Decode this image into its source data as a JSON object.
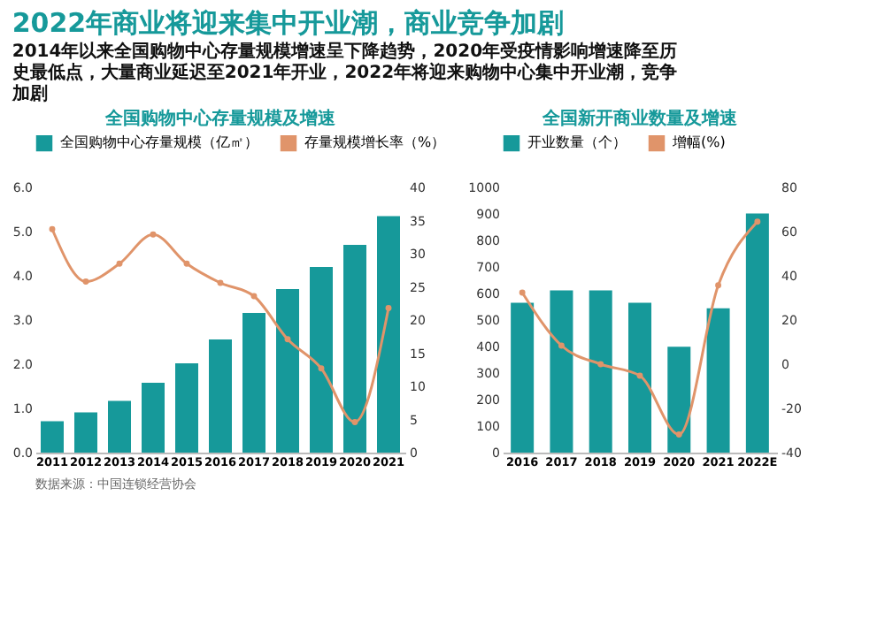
{
  "chart_data": [
    {
      "type": "bar",
      "title": "全国购物中心存量规模及增速",
      "categories": [
        "2011",
        "2012",
        "2013",
        "2014",
        "2015",
        "2016",
        "2017",
        "2018",
        "2019",
        "2020",
        "2021"
      ],
      "series": [
        {
          "name": "全国购物中心存量规模（亿㎡）",
          "color": "#16999a",
          "values": [
            0.71,
            0.91,
            1.17,
            1.58,
            2.02,
            2.56,
            3.16,
            3.7,
            4.2,
            4.7,
            5.35
          ]
        },
        {
          "name": "存量规模增长率（%）",
          "type": "line",
          "axis": "y2",
          "color": "#e0946a",
          "values": [
            33.7,
            25.8,
            28.5,
            32.9,
            28.5,
            25.6,
            23.6,
            17.1,
            12.7,
            4.6,
            21.8
          ]
        }
      ],
      "ylim": [
        0,
        6
      ],
      "yticks": [
        {
          "value": 0,
          "label": "0.0"
        },
        {
          "value": 1,
          "label": "1.0"
        },
        {
          "value": 2,
          "label": "2.0"
        },
        {
          "value": 3,
          "label": "3.0"
        },
        {
          "value": 4,
          "label": "4.0"
        },
        {
          "value": 5,
          "label": "5.0"
        },
        {
          "value": 6,
          "label": "6.0"
        }
      ],
      "y2lim": [
        0,
        40
      ],
      "y2ticks": [
        0,
        5,
        10,
        15,
        20,
        25,
        30,
        35,
        40
      ],
      "legend": "top",
      "marker": "circle",
      "line_style": "solid",
      "grid": false,
      "annotations": [
        "2022年商业将迎来集中开业潮，商业竞争加剧",
        "2014年以来全国购物中心存量规模增速呈下降趋势，2020年受疫情影响增速降至历史最低点，大量商业延迟至2021年开业，2022年将迎来购物中心集中开业潮，竞争加剧",
        "数据来源：中国连锁经营协会"
      ]
    },
    {
      "type": "bar",
      "title": "全国新开商业数量及增速",
      "categories": [
        "2016",
        "2017",
        "2018",
        "2019",
        "2020",
        "2021",
        "2022E"
      ],
      "series": [
        {
          "name": "开业数量（个）",
          "color": "#16999a",
          "values": [
            565,
            612,
            612,
            565,
            399,
            544,
            902
          ]
        },
        {
          "name": "增幅(%)",
          "type": "line",
          "axis": "y2",
          "color": "#e0946a",
          "values": [
            32.4,
            8.4,
            0,
            -5.2,
            -31.8,
            35.7,
            64.5
          ]
        }
      ],
      "ylim": [
        0,
        1000
      ],
      "yticks": [
        0,
        100,
        200,
        300,
        400,
        500,
        600,
        700,
        800,
        900,
        1000
      ],
      "y2lim": [
        -40,
        80
      ],
      "y2ticks": [
        -40,
        -20,
        0,
        20,
        40,
        60,
        80
      ],
      "legend": "top",
      "marker": "circle",
      "line_style": "solid",
      "grid": false
    }
  ]
}
